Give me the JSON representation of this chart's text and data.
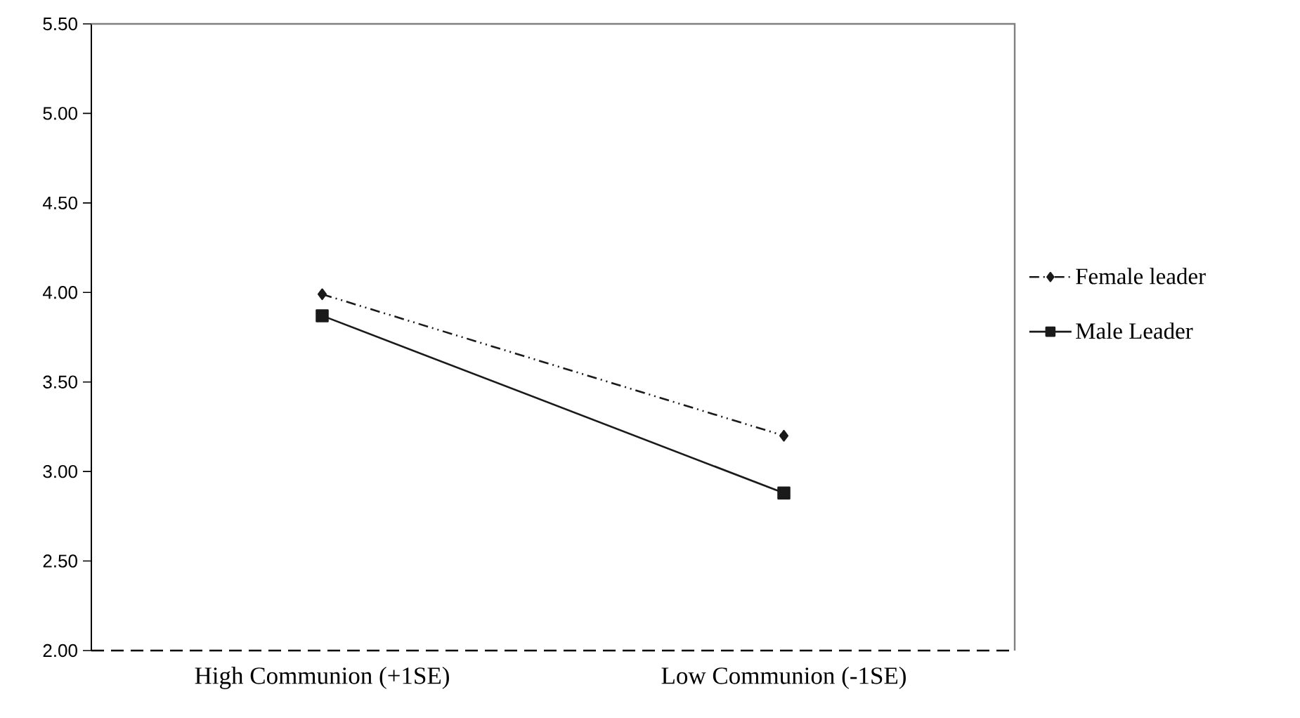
{
  "chart_data": {
    "type": "line",
    "categories": [
      "High Communion (+1SE)",
      "Low Communion (-1SE)"
    ],
    "series": [
      {
        "name": "Female leader",
        "color": "#1a1a1a",
        "values": [
          3.99,
          3.2
        ],
        "marker": "diamond",
        "line_style": "dashed"
      },
      {
        "name": "Male Leader",
        "color": "#1a1a1a",
        "values": [
          3.87,
          2.88
        ],
        "marker": "square",
        "line_style": "solid"
      }
    ],
    "ylim": [
      2.0,
      5.5
    ],
    "yticks": [
      {
        "value": 2.0,
        "label": "2.00"
      },
      {
        "value": 2.5,
        "label": "2.50"
      },
      {
        "value": 3.0,
        "label": "3.00"
      },
      {
        "value": 3.5,
        "label": "3.50"
      },
      {
        "value": 4.0,
        "label": "4.00"
      },
      {
        "value": 4.5,
        "label": "4.50"
      },
      {
        "value": 5.0,
        "label": "5.00"
      },
      {
        "value": 5.5,
        "label": "5.50"
      }
    ],
    "grid": false,
    "legend": "right"
  }
}
